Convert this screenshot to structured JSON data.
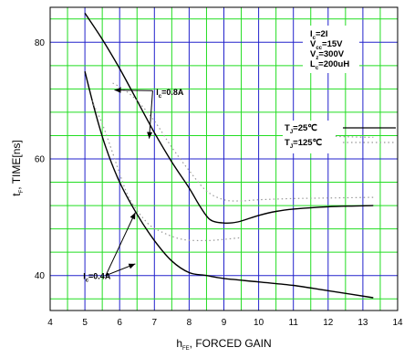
{
  "chart_data": {
    "type": "line",
    "title": "",
    "xlabel": {
      "main": "h",
      "sub": "FE",
      "rest": ", FORCED GAIN"
    },
    "ylabel": {
      "main": "t",
      "sub": "F",
      "rest": ", TIME[ns]"
    },
    "xlim": [
      4,
      14
    ],
    "ylim": [
      34,
      86
    ],
    "x_ticks": [
      4,
      5,
      6,
      7,
      8,
      9,
      10,
      11,
      12,
      13,
      14
    ],
    "x_tick_labels": [
      "4",
      "5",
      "6",
      "7",
      "8",
      "9",
      "10",
      "11",
      "12",
      "13",
      "14"
    ],
    "y_ticks": [
      40,
      60,
      80
    ],
    "y_tick_labels": [
      "40",
      "60",
      "80"
    ],
    "grid": true,
    "minor_x_step": 0.5,
    "minor_y_step": 4,
    "colors": {
      "grid_major": "#2222cc",
      "grid_minor": "#22dd22",
      "solid": "#000000",
      "dotted": "#999999"
    },
    "series": [
      {
        "style": "solid",
        "label_ref": "ic_08",
        "points": [
          [
            5.0,
            85.0
          ],
          [
            5.5,
            80.5
          ],
          [
            6.0,
            75.5
          ],
          [
            6.5,
            70.0
          ],
          [
            7.0,
            64.5
          ],
          [
            7.5,
            59.5
          ],
          [
            8.0,
            55.0
          ],
          [
            8.3,
            52.0
          ],
          [
            8.6,
            49.6
          ],
          [
            9.0,
            49.0
          ],
          [
            9.4,
            49.2
          ],
          [
            10.0,
            50.3
          ],
          [
            10.5,
            51.0
          ],
          [
            11.0,
            51.4
          ],
          [
            12.0,
            51.8
          ],
          [
            13.3,
            52.0
          ]
        ]
      },
      {
        "style": "solid",
        "label_ref": "ic_04",
        "points": [
          [
            5.0,
            75.0
          ],
          [
            5.3,
            68.0
          ],
          [
            5.6,
            62.0
          ],
          [
            6.0,
            56.0
          ],
          [
            6.5,
            50.5
          ],
          [
            7.0,
            46.0
          ],
          [
            7.5,
            42.5
          ],
          [
            8.0,
            40.5
          ],
          [
            8.5,
            40.0
          ],
          [
            9.0,
            39.5
          ],
          [
            10.0,
            38.9
          ],
          [
            11.0,
            38.3
          ],
          [
            12.0,
            37.4
          ],
          [
            13.3,
            36.2
          ]
        ]
      },
      {
        "style": "dotted",
        "points": [
          [
            5.8,
            73.0
          ],
          [
            6.1,
            72.0
          ],
          [
            6.5,
            70.0
          ],
          [
            7.0,
            66.5
          ],
          [
            7.5,
            62.0
          ],
          [
            8.0,
            58.0
          ],
          [
            8.5,
            54.5
          ],
          [
            9.0,
            53.0
          ],
          [
            9.5,
            52.8
          ],
          [
            10.0,
            53.0
          ],
          [
            11.0,
            53.2
          ],
          [
            12.0,
            53.3
          ],
          [
            13.3,
            53.4
          ]
        ]
      },
      {
        "style": "dotted",
        "points": [
          [
            5.2,
            70.0
          ],
          [
            5.5,
            66.0
          ],
          [
            5.8,
            61.0
          ],
          [
            6.0,
            57.5
          ],
          [
            6.3,
            53.0
          ],
          [
            6.8,
            49.0
          ],
          [
            7.2,
            47.5
          ],
          [
            7.8,
            46.2
          ],
          [
            8.5,
            46.0
          ],
          [
            9.0,
            46.2
          ],
          [
            9.5,
            46.5
          ]
        ]
      },
      {
        "style": "dotted",
        "points": [
          [
            11.5,
            64.0
          ],
          [
            12.0,
            63.9
          ],
          [
            12.5,
            63.8
          ],
          [
            13.3,
            63.7
          ]
        ]
      }
    ],
    "annotations": {
      "ic_08": {
        "main": "I",
        "sub": "c",
        "rest": "=0.8A",
        "x": 7.05,
        "y": 71.0,
        "arrows": [
          [
            6.95,
            71.7,
            5.85,
            71.8
          ],
          [
            6.95,
            71.7,
            6.85,
            63.5
          ]
        ]
      },
      "ic_04": {
        "main": "I",
        "sub": "c",
        "rest": "=0.4A",
        "x": 4.95,
        "y": 39.4,
        "arrows": [
          [
            5.6,
            40.0,
            6.45,
            50.8
          ],
          [
            5.6,
            40.0,
            6.45,
            42.0
          ]
        ]
      }
    },
    "conditions": [
      {
        "main": "I",
        "sub": "c",
        "rest": "=2I"
      },
      {
        "main": "V",
        "sub": "cc",
        "rest": "=15V"
      },
      {
        "main": "V",
        "sub": "z",
        "rest": "=300V"
      },
      {
        "main": "L",
        "sub": "c",
        "rest": "=200uH"
      }
    ],
    "legend": {
      "placement": "right",
      "entries": [
        {
          "main": "T",
          "sub": "J",
          "rest": "=25℃",
          "style": "solid"
        },
        {
          "main": "T",
          "sub": "J",
          "rest": "=125℃",
          "style": "dotted"
        }
      ]
    }
  }
}
